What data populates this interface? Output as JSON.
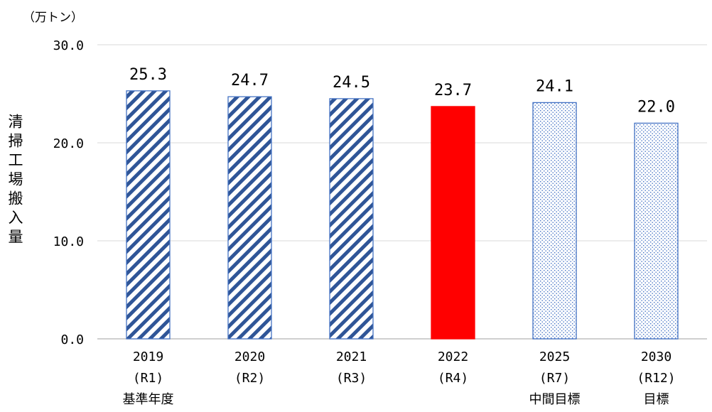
{
  "chart_data": {
    "type": "bar",
    "unit_label": "（万トン）",
    "ylabel": "清掃工場搬入量",
    "ylim": [
      0,
      30
    ],
    "yticks": [
      "0.0",
      "10.0",
      "20.0",
      "30.0"
    ],
    "grid": true,
    "categories": [
      {
        "year": "2019",
        "code": "(R1)",
        "note": "基準年度",
        "value": 25.3,
        "value_label": "25.3",
        "style": "diagonal-stripe"
      },
      {
        "year": "2020",
        "code": "(R2)",
        "note": "",
        "value": 24.7,
        "value_label": "24.7",
        "style": "diagonal-stripe"
      },
      {
        "year": "2021",
        "code": "(R3)",
        "note": "",
        "value": 24.5,
        "value_label": "24.5",
        "style": "diagonal-stripe"
      },
      {
        "year": "2022",
        "code": "(R4)",
        "note": "",
        "value": 23.7,
        "value_label": "23.7",
        "style": "solid"
      },
      {
        "year": "2025",
        "code": "(R7)",
        "note": "中間目標",
        "value": 24.1,
        "value_label": "24.1",
        "style": "dotted"
      },
      {
        "year": "2030",
        "code": "(R12)",
        "note": "目標",
        "value": 22.0,
        "value_label": "22.0",
        "style": "dotted"
      }
    ],
    "colors": {
      "stripe": "#4472c4",
      "solid": "#ff0000",
      "dotted": "#4472c4",
      "grid": "#d9d9d9"
    }
  }
}
